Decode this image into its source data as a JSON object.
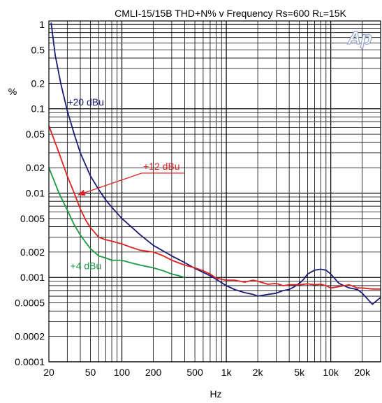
{
  "chart_data": {
    "type": "line",
    "title_parts": {
      "main": "CMLI-15/15B  THD+N% v Frequency  Rs=600 R",
      "sub1": "L",
      "tail": "=15K"
    },
    "logo_text": "Ap",
    "xlabel": "Hz",
    "ylabel": "%",
    "x_scale": "log",
    "y_scale": "log",
    "xlim": [
      20,
      30000
    ],
    "ylim": [
      0.0001,
      1.1
    ],
    "grid": true,
    "x_ticks": [
      {
        "value": 20,
        "label": "20"
      },
      {
        "value": 50,
        "label": "50"
      },
      {
        "value": 100,
        "label": "100"
      },
      {
        "value": 200,
        "label": "200"
      },
      {
        "value": 500,
        "label": "500"
      },
      {
        "value": 1000,
        "label": "1k"
      },
      {
        "value": 2000,
        "label": "2k"
      },
      {
        "value": 5000,
        "label": "5k"
      },
      {
        "value": 10000,
        "label": "10k"
      },
      {
        "value": 20000,
        "label": "20k"
      }
    ],
    "y_ticks": [
      {
        "value": 1,
        "label": "1"
      },
      {
        "value": 0.5,
        "label": "0.5"
      },
      {
        "value": 0.2,
        "label": "0.2"
      },
      {
        "value": 0.1,
        "label": "0.1"
      },
      {
        "value": 0.05,
        "label": "0.05"
      },
      {
        "value": 0.02,
        "label": "0.02"
      },
      {
        "value": 0.01,
        "label": "0.01"
      },
      {
        "value": 0.005,
        "label": "0.005"
      },
      {
        "value": 0.002,
        "label": "0.002"
      },
      {
        "value": 0.001,
        "label": "0.001"
      },
      {
        "value": 0.0005,
        "label": "0.0005"
      },
      {
        "value": 0.0002,
        "label": "0.0002"
      },
      {
        "value": 0.0001,
        "label": "0.0001"
      }
    ],
    "series": [
      {
        "name": "+20 dBu",
        "color": "#1a1a78",
        "x": [
          21,
          23,
          26,
          30,
          35,
          40,
          50,
          60,
          70,
          80,
          100,
          120,
          150,
          200,
          300,
          400,
          500,
          600,
          700,
          800,
          900,
          1000,
          1200,
          1500,
          1800,
          2000,
          2500,
          3000,
          3500,
          4000,
          4500,
          5000,
          5500,
          6000,
          7000,
          8000,
          9000,
          10000,
          12000,
          15000,
          18000,
          20000,
          25000,
          30000
        ],
        "y": [
          1.05,
          0.43,
          0.2,
          0.095,
          0.05,
          0.03,
          0.016,
          0.011,
          0.0083,
          0.0068,
          0.005,
          0.0041,
          0.0032,
          0.0024,
          0.0018,
          0.0015,
          0.00128,
          0.00115,
          0.00105,
          0.00095,
          0.00087,
          0.0008,
          0.00072,
          0.00066,
          0.00063,
          0.0006,
          0.00063,
          0.00065,
          0.0007,
          0.00072,
          0.00078,
          0.00085,
          0.00095,
          0.0011,
          0.00122,
          0.00125,
          0.00122,
          0.0011,
          0.00085,
          0.00075,
          0.00072,
          0.00065,
          0.00048,
          0.00058
        ]
      },
      {
        "name": "+12 dBu",
        "color": "#dd2222",
        "x": [
          20,
          25,
          30,
          35,
          40,
          45,
          50,
          55,
          60,
          70,
          80,
          100,
          120,
          150,
          200,
          250,
          300,
          400,
          500,
          600,
          700,
          800,
          900,
          1000,
          1200,
          1500,
          1800,
          2000,
          2500,
          3000,
          3500,
          4000,
          5000,
          6000,
          7000,
          8000,
          9000,
          10000,
          12000,
          15000,
          18000,
          20000,
          25000,
          30000
        ],
        "y": [
          0.063,
          0.03,
          0.016,
          0.01,
          0.0065,
          0.0048,
          0.0039,
          0.0034,
          0.003,
          0.0028,
          0.0027,
          0.0025,
          0.0023,
          0.0021,
          0.002,
          0.0018,
          0.0016,
          0.0014,
          0.0013,
          0.0012,
          0.0011,
          0.00098,
          0.00095,
          0.00093,
          0.00093,
          0.00088,
          0.00093,
          0.0009,
          0.00083,
          0.00085,
          0.0008,
          0.00082,
          0.00082,
          0.00084,
          0.00082,
          0.00083,
          0.0008,
          0.00075,
          0.00078,
          0.00082,
          0.00075,
          0.00075,
          0.00073,
          0.00073
        ]
      },
      {
        "name": "+4 dBu",
        "color": "#1a9944",
        "x": [
          20,
          25,
          30,
          35,
          40,
          45,
          50,
          60,
          70,
          80,
          100,
          120,
          150,
          200,
          250,
          300,
          350,
          400
        ],
        "y": [
          0.02,
          0.01,
          0.0063,
          0.0042,
          0.0032,
          0.0026,
          0.0022,
          0.0018,
          0.0017,
          0.0016,
          0.0016,
          0.0015,
          0.0014,
          0.0013,
          0.0012,
          0.0011,
          0.00105,
          0.001
        ]
      }
    ],
    "annotations": [
      {
        "series": 0,
        "text": "+20 dBu",
        "at": [
          30,
          0.11
        ]
      },
      {
        "series": 1,
        "text": "+12 dBu",
        "at": [
          160,
          0.019
        ],
        "arrow_to": [
          38,
          0.0095
        ]
      },
      {
        "series": 2,
        "text": "+4 dBu",
        "at": [
          32,
          0.00125
        ]
      }
    ]
  }
}
